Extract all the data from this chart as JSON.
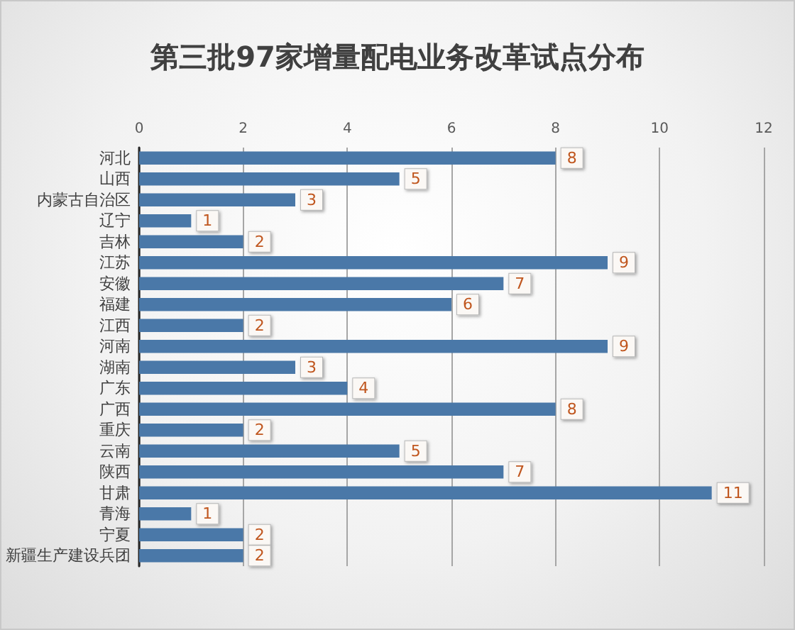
{
  "chart_data": {
    "type": "bar",
    "orientation": "horizontal",
    "title": "第三批97家增量配电业务改革试点分布",
    "categories": [
      "河北",
      "山西",
      "内蒙古自治区",
      "辽宁",
      "吉林",
      "江苏",
      "安徽",
      "福建",
      "江西",
      "河南",
      "湖南",
      "广东",
      "广西",
      "重庆",
      "云南",
      "陕西",
      "甘肃",
      "青海",
      "宁夏",
      "新疆生产建设兵团"
    ],
    "values": [
      8,
      5,
      3,
      1,
      2,
      9,
      7,
      6,
      2,
      9,
      3,
      4,
      8,
      2,
      5,
      7,
      11,
      1,
      2,
      2
    ],
    "color": "#4a78a8",
    "xlim": [
      0,
      12
    ],
    "xticks": [
      0,
      2,
      4,
      6,
      8,
      10,
      12
    ],
    "grid": "x",
    "data_labels": true
  }
}
